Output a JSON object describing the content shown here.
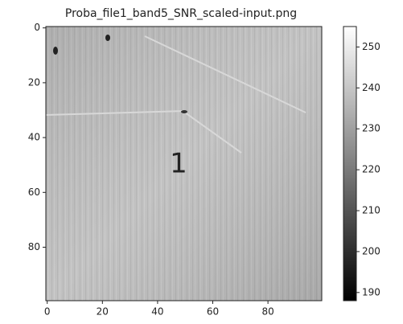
{
  "chart_data": {
    "type": "image",
    "title": "Proba_file1_band5_SNR_scaled-input.png",
    "xlim": [
      -0.5,
      99.5
    ],
    "xticks": [
      0,
      20,
      40,
      60,
      80
    ],
    "ylim": [
      99.5,
      -0.5
    ],
    "yticks": [
      0,
      20,
      40,
      60,
      80
    ],
    "colormap": "gray",
    "clim": [
      188,
      255
    ],
    "cticks": [
      190,
      200,
      210,
      220,
      230,
      240,
      250
    ],
    "annotation": "1",
    "annotation_color": "#ff0000"
  }
}
